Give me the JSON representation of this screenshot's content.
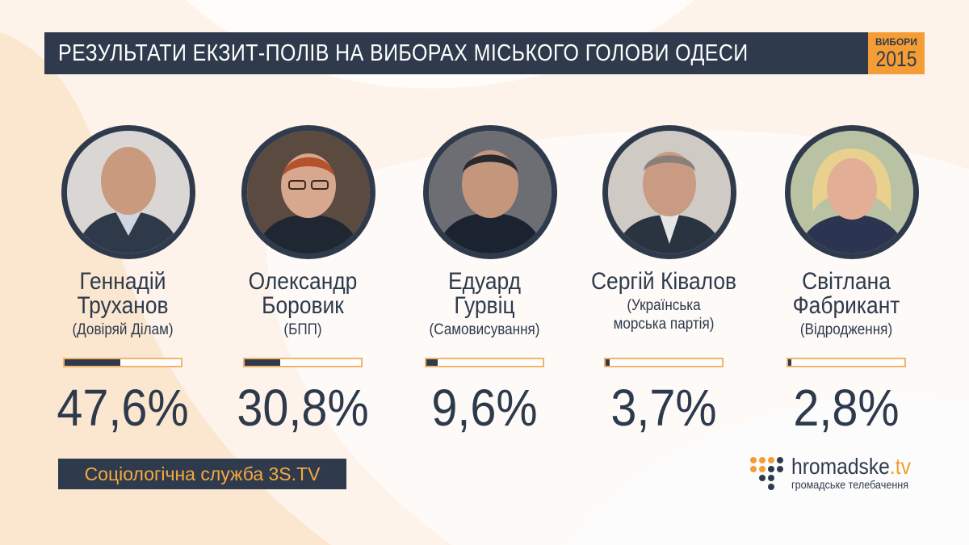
{
  "header": {
    "title": "РЕЗУЛЬТАТИ ЕКЗИТ-ПОЛІВ НА ВИБОРАХ МІСЬКОГО ГОЛОВИ ОДЕСИ",
    "badge_top": "ВИБОРИ",
    "badge_year": "2015"
  },
  "colors": {
    "navy": "#2f3b4d",
    "orange": "#f49d35",
    "peach": "#fbe6cf"
  },
  "chart_data": {
    "type": "bar",
    "title": "РЕЗУЛЬТАТИ ЕКЗИТ-ПОЛІВ НА ВИБОРАХ МІСЬКОГО ГОЛОВИ ОДЕСИ",
    "ylim": [
      0,
      100
    ],
    "candidates": [
      {
        "name_line1": "Геннадій",
        "name_line2": "Труханов",
        "party": "(Довіряй Ділам)",
        "party_line2": "",
        "value": 47.6,
        "label": "47,6%"
      },
      {
        "name_line1": "Олександр",
        "name_line2": "Боровик",
        "party": "(БПП)",
        "party_line2": "",
        "value": 30.8,
        "label": "30,8%"
      },
      {
        "name_line1": "Едуард",
        "name_line2": "Гурвіц",
        "party": "(Самовисування)",
        "party_line2": "",
        "value": 9.6,
        "label": "9,6%"
      },
      {
        "name_line1": "Сергій Ківалов",
        "name_line2": "",
        "party": "(Українська",
        "party_line2": "морська партія)",
        "value": 3.7,
        "label": "3,7%"
      },
      {
        "name_line1": "Світлана",
        "name_line2": "Фабрикант",
        "party": "(Відродження)",
        "party_line2": "",
        "value": 2.8,
        "label": "2,8%"
      }
    ]
  },
  "footer": {
    "source": "Соціологічна служба 3S.TV",
    "logo_name": "hromadske",
    "logo_tld": ".tv",
    "logo_sub": "громадське телебачення"
  }
}
